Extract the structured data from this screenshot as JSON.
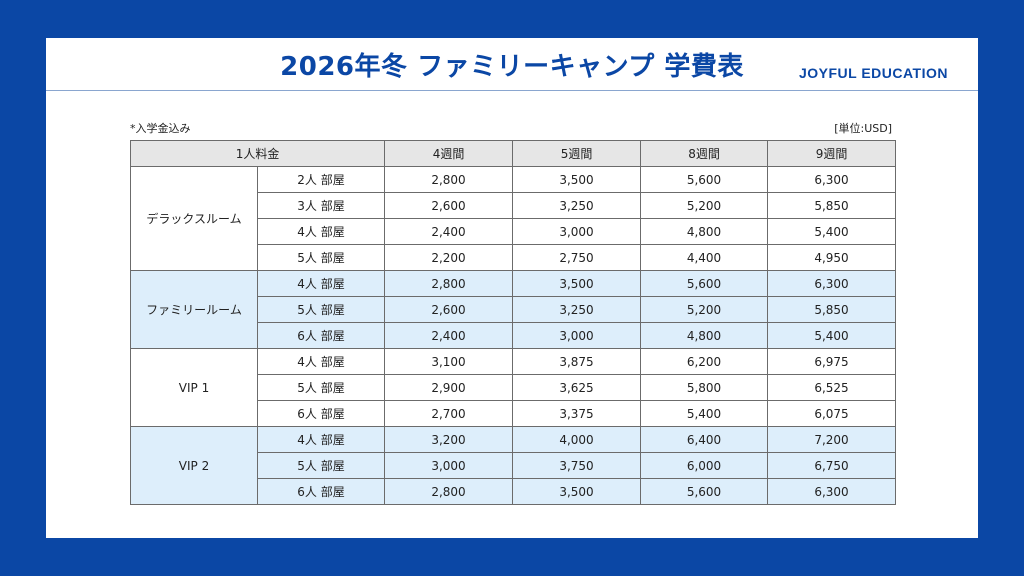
{
  "title": "2026年冬 ファミリーキャンプ 学費表",
  "brand": "JOYFUL EDUCATION",
  "note_left": "*入学金込み",
  "note_right": "[単位:USD]",
  "table": {
    "headers": [
      "1人料金",
      "4週間",
      "5週間",
      "8週間",
      "9週間"
    ],
    "groups": [
      {
        "name": "デラックスルーム",
        "shaded": false,
        "rows": [
          {
            "room": "2人 部屋",
            "values": [
              "2,800",
              "3,500",
              "5,600",
              "6,300"
            ]
          },
          {
            "room": "3人 部屋",
            "values": [
              "2,600",
              "3,250",
              "5,200",
              "5,850"
            ]
          },
          {
            "room": "4人 部屋",
            "values": [
              "2,400",
              "3,000",
              "4,800",
              "5,400"
            ]
          },
          {
            "room": "5人 部屋",
            "values": [
              "2,200",
              "2,750",
              "4,400",
              "4,950"
            ]
          }
        ]
      },
      {
        "name": "ファミリールーム",
        "shaded": true,
        "rows": [
          {
            "room": "4人 部屋",
            "values": [
              "2,800",
              "3,500",
              "5,600",
              "6,300"
            ]
          },
          {
            "room": "5人 部屋",
            "values": [
              "2,600",
              "3,250",
              "5,200",
              "5,850"
            ]
          },
          {
            "room": "6人 部屋",
            "values": [
              "2,400",
              "3,000",
              "4,800",
              "5,400"
            ]
          }
        ]
      },
      {
        "name": "VIP 1",
        "shaded": false,
        "rows": [
          {
            "room": "4人 部屋",
            "values": [
              "3,100",
              "3,875",
              "6,200",
              "6,975"
            ]
          },
          {
            "room": "5人 部屋",
            "values": [
              "2,900",
              "3,625",
              "5,800",
              "6,525"
            ]
          },
          {
            "room": "6人 部屋",
            "values": [
              "2,700",
              "3,375",
              "5,400",
              "6,075"
            ]
          }
        ]
      },
      {
        "name": "VIP 2",
        "shaded": true,
        "rows": [
          {
            "room": "4人 部屋",
            "values": [
              "3,200",
              "4,000",
              "6,400",
              "7,200"
            ]
          },
          {
            "room": "5人 部屋",
            "values": [
              "3,000",
              "3,750",
              "6,000",
              "6,750"
            ]
          },
          {
            "room": "6人 部屋",
            "values": [
              "2,800",
              "3,500",
              "5,600",
              "6,300"
            ]
          }
        ]
      }
    ]
  }
}
